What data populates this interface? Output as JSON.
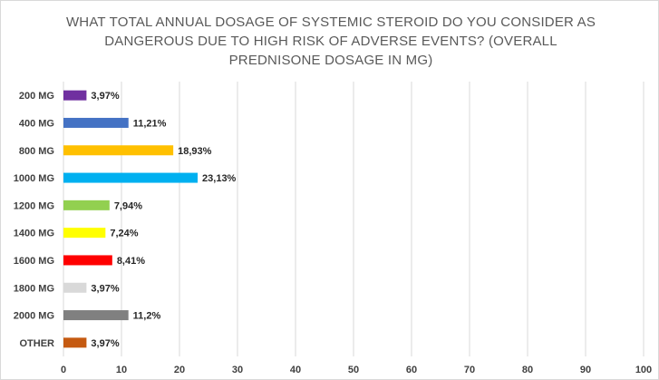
{
  "chart_data": {
    "type": "bar",
    "orientation": "horizontal",
    "title": "WHAT TOTAL ANNUAL DOSAGE OF SYSTEMIC STEROID DO YOU CONSIDER AS DANGEROUS DUE TO HIGH RISK OF ADVERSE EVENTS? (OVERALL PREDNISONE DOSAGE IN MG)",
    "categories": [
      "200 MG",
      "400 MG",
      "800 MG",
      "1000 MG",
      "1200 MG",
      "1400 MG",
      "1600 MG",
      "1800 MG",
      "2000 MG",
      "OTHER"
    ],
    "values": [
      3.97,
      11.21,
      18.93,
      23.13,
      7.94,
      7.24,
      8.41,
      3.97,
      11.2,
      3.97
    ],
    "data_labels": [
      "3,97%",
      "11,21%",
      "18,93%",
      "23,13%",
      "7,94%",
      "7,24%",
      "8,41%",
      "3,97%",
      "11,2%",
      "3,97%"
    ],
    "colors": [
      "#7030a0",
      "#4472c4",
      "#ffc000",
      "#00b0f0",
      "#92d050",
      "#ffff00",
      "#ff0000",
      "#d9d9d9",
      "#808080",
      "#c55a11"
    ],
    "xlim": [
      0,
      100
    ],
    "x_ticks": [
      "0",
      "10",
      "20",
      "30",
      "40",
      "50",
      "60",
      "70",
      "80",
      "90",
      "100"
    ],
    "grid": "vertical",
    "xlabel": "",
    "ylabel": ""
  }
}
